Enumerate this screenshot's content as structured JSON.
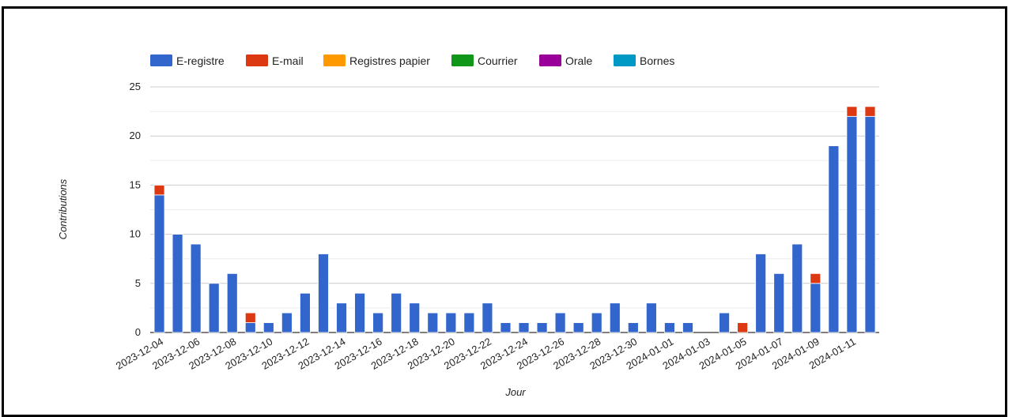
{
  "chart_data": {
    "type": "bar",
    "stacked": true,
    "xlabel": "Jour",
    "ylabel": "Contributions",
    "ylim": [
      0,
      25
    ],
    "yticks": [
      0,
      5,
      10,
      15,
      20,
      25
    ],
    "grid": true,
    "legend_position": "top",
    "categories": [
      "2023-12-04",
      "2023-12-05",
      "2023-12-06",
      "2023-12-07",
      "2023-12-08",
      "2023-12-09",
      "2023-12-10",
      "2023-12-11",
      "2023-12-12",
      "2023-12-13",
      "2023-12-14",
      "2023-12-15",
      "2023-12-16",
      "2023-12-17",
      "2023-12-18",
      "2023-12-19",
      "2023-12-20",
      "2023-12-21",
      "2023-12-22",
      "2023-12-23",
      "2023-12-24",
      "2023-12-25",
      "2023-12-26",
      "2023-12-27",
      "2023-12-28",
      "2023-12-29",
      "2023-12-30",
      "2023-12-31",
      "2024-01-01",
      "2024-01-02",
      "2024-01-03",
      "2024-01-04",
      "2024-01-05",
      "2024-01-06",
      "2024-01-07",
      "2024-01-08",
      "2024-01-09",
      "2024-01-10",
      "2024-01-11",
      "2024-01-12"
    ],
    "tick_labels": [
      "2023-12-04",
      "2023-12-06",
      "2023-12-08",
      "2023-12-10",
      "2023-12-12",
      "2023-12-14",
      "2023-12-16",
      "2023-12-18",
      "2023-12-20",
      "2023-12-22",
      "2023-12-24",
      "2023-12-26",
      "2023-12-28",
      "2023-12-30",
      "2024-01-01",
      "2024-01-03",
      "2024-01-05",
      "2024-01-07",
      "2024-01-09",
      "2024-01-11"
    ],
    "series": [
      {
        "name": "E-registre",
        "color": "#3366cc",
        "values": [
          14,
          10,
          9,
          5,
          6,
          1,
          1,
          2,
          4,
          8,
          3,
          4,
          2,
          4,
          3,
          2,
          2,
          2,
          3,
          1,
          1,
          1,
          2,
          1,
          2,
          3,
          1,
          3,
          1,
          1,
          0,
          2,
          0,
          8,
          6,
          9,
          5,
          19,
          22,
          22
        ]
      },
      {
        "name": "E-mail",
        "color": "#dc3912",
        "values": [
          1,
          0,
          0,
          0,
          0,
          1,
          0,
          0,
          0,
          0,
          0,
          0,
          0,
          0,
          0,
          0,
          0,
          0,
          0,
          0,
          0,
          0,
          0,
          0,
          0,
          0,
          0,
          0,
          0,
          0,
          0,
          0,
          1,
          0,
          0,
          0,
          1,
          0,
          1,
          1
        ]
      },
      {
        "name": "Registres papier",
        "color": "#ff9900",
        "values": [
          0,
          0,
          0,
          0,
          0,
          0,
          0,
          0,
          0,
          0,
          0,
          0,
          0,
          0,
          0,
          0,
          0,
          0,
          0,
          0,
          0,
          0,
          0,
          0,
          0,
          0,
          0,
          0,
          0,
          0,
          0,
          0,
          0,
          0,
          0,
          0,
          0,
          0,
          0,
          0
        ]
      },
      {
        "name": "Courrier",
        "color": "#109618",
        "values": [
          0,
          0,
          0,
          0,
          0,
          0,
          0,
          0,
          0,
          0,
          0,
          0,
          0,
          0,
          0,
          0,
          0,
          0,
          0,
          0,
          0,
          0,
          0,
          0,
          0,
          0,
          0,
          0,
          0,
          0,
          0,
          0,
          0,
          0,
          0,
          0,
          0,
          0,
          0,
          0
        ]
      },
      {
        "name": "Orale",
        "color": "#990099",
        "values": [
          0,
          0,
          0,
          0,
          0,
          0,
          0,
          0,
          0,
          0,
          0,
          0,
          0,
          0,
          0,
          0,
          0,
          0,
          0,
          0,
          0,
          0,
          0,
          0,
          0,
          0,
          0,
          0,
          0,
          0,
          0,
          0,
          0,
          0,
          0,
          0,
          0,
          0,
          0,
          0
        ]
      },
      {
        "name": "Bornes",
        "color": "#0099c6",
        "values": [
          0,
          0,
          0,
          0,
          0,
          0,
          0,
          0,
          0,
          0,
          0,
          0,
          0,
          0,
          0,
          0,
          0,
          0,
          0,
          0,
          0,
          0,
          0,
          0,
          0,
          0,
          0,
          0,
          0,
          0,
          0,
          0,
          0,
          0,
          0,
          0,
          0,
          0,
          0,
          0
        ]
      }
    ]
  }
}
